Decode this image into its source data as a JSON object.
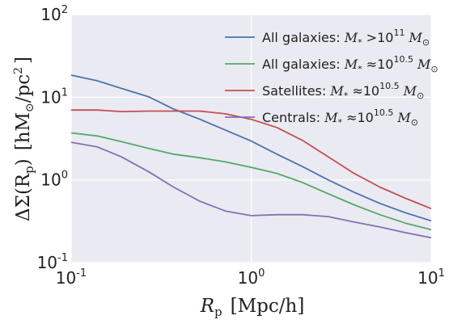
{
  "chart_data": {
    "type": "line",
    "xscale": "log",
    "yscale": "log",
    "xlim": [
      0.1,
      10
    ],
    "ylim": [
      0.1,
      100
    ],
    "grid": true,
    "legend": "top-right",
    "xlabel": {
      "var": "R",
      "sub": "p",
      "unit": "[Mpc/h]"
    },
    "ylabel": {
      "var": "ΔΣ(R",
      "sub": "p",
      "tail": ")",
      "unit": "[hM",
      "unit_sub": "⊙",
      "unit_tail": "/pc",
      "unit_sup": "2",
      "unit_end": "]"
    },
    "x_ticks": [
      {
        "value": 0.1,
        "base": "10",
        "exp": "-1"
      },
      {
        "value": 1,
        "base": "10",
        "exp": "0"
      },
      {
        "value": 10,
        "base": "10",
        "exp": "1"
      }
    ],
    "y_ticks": [
      {
        "value": 0.1,
        "base": "10",
        "exp": "-1"
      },
      {
        "value": 1,
        "base": "10",
        "exp": "0"
      },
      {
        "value": 10,
        "base": "10",
        "exp": "1"
      },
      {
        "value": 100,
        "base": "10",
        "exp": "2"
      }
    ],
    "series": [
      {
        "name_text": "All galaxies: ",
        "name_math": "M",
        "name_math_sub": "*",
        "name_rel": " >10",
        "name_sup": "11",
        "name_unit": " M",
        "name_unit_sub": "⊙",
        "color": "#4c72b0",
        "x": [
          0.1,
          0.14,
          0.19,
          0.27,
          0.37,
          0.52,
          0.72,
          1.0,
          1.39,
          1.93,
          2.68,
          3.73,
          5.18,
          7.2,
          10.0
        ],
        "y": [
          18.5,
          15.8,
          12.8,
          10.1,
          7.2,
          5.4,
          4.0,
          2.95,
          2.05,
          1.45,
          1.0,
          0.71,
          0.52,
          0.4,
          0.32
        ]
      },
      {
        "name_text": "All galaxies: ",
        "name_math": "M",
        "name_math_sub": "*",
        "name_rel": " ≈10",
        "name_sup": "10.5",
        "name_unit": " M",
        "name_unit_sub": "⊙",
        "color": "#55a868",
        "x": [
          0.1,
          0.14,
          0.19,
          0.27,
          0.37,
          0.52,
          0.72,
          1.0,
          1.39,
          1.93,
          2.68,
          3.73,
          5.18,
          7.2,
          10.0
        ],
        "y": [
          3.7,
          3.4,
          2.9,
          2.4,
          2.05,
          1.85,
          1.65,
          1.42,
          1.2,
          0.93,
          0.68,
          0.5,
          0.38,
          0.3,
          0.25
        ]
      },
      {
        "name_text": "Satellites: ",
        "name_math": "M",
        "name_math_sub": "*",
        "name_rel": " ≈10",
        "name_sup": "10.5",
        "name_unit": " M",
        "name_unit_sub": "⊙",
        "color": "#c44e52",
        "x": [
          0.1,
          0.14,
          0.19,
          0.27,
          0.37,
          0.52,
          0.72,
          1.0,
          1.39,
          1.93,
          2.68,
          3.73,
          5.18,
          7.2,
          10.0
        ],
        "y": [
          7.0,
          7.0,
          6.7,
          6.8,
          6.8,
          6.8,
          6.3,
          5.4,
          4.3,
          3.0,
          1.9,
          1.2,
          0.82,
          0.6,
          0.45
        ]
      },
      {
        "name_text": "Centrals: ",
        "name_math": "M",
        "name_math_sub": "*",
        "name_rel": " ≈10",
        "name_sup": "10.5",
        "name_unit": " M",
        "name_unit_sub": "⊙",
        "color": "#8172b2",
        "x": [
          0.1,
          0.14,
          0.19,
          0.27,
          0.37,
          0.52,
          0.72,
          1.0,
          1.39,
          1.93,
          2.68,
          3.73,
          5.18,
          7.2,
          10.0
        ],
        "y": [
          2.85,
          2.5,
          1.9,
          1.25,
          0.82,
          0.55,
          0.42,
          0.37,
          0.38,
          0.38,
          0.36,
          0.31,
          0.27,
          0.23,
          0.2
        ]
      }
    ]
  },
  "colors": {
    "plot_bg": "#eaeaf2",
    "grid": "#ffffff"
  }
}
